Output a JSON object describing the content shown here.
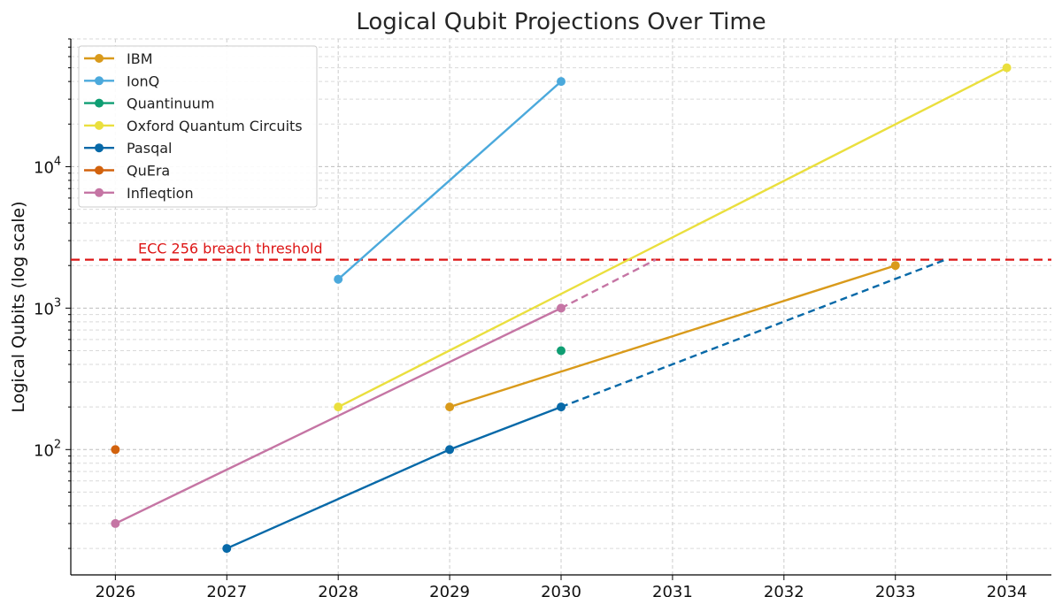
{
  "chart_data": {
    "type": "line",
    "title": "Logical Qubit Projections Over Time",
    "xlabel": "",
    "ylabel": "Logical Qubits (log scale)",
    "yscale": "log",
    "xlim": [
      2025.6,
      2034.4
    ],
    "ylim": [
      13,
      80000
    ],
    "x_ticks": [
      2026,
      2027,
      2028,
      2029,
      2030,
      2031,
      2032,
      2033,
      2034
    ],
    "y_ticks": [
      {
        "value": 100,
        "base": "10",
        "exp": "2"
      },
      {
        "value": 1000,
        "base": "10",
        "exp": "3"
      },
      {
        "value": 10000,
        "base": "10",
        "exp": "4"
      }
    ],
    "grid": true,
    "legend_position": "top-left",
    "series": [
      {
        "name": "IBM",
        "color": "#D99A1B",
        "points": [
          [
            2029,
            200
          ],
          [
            2033,
            2000
          ]
        ],
        "projection": []
      },
      {
        "name": "IonQ",
        "color": "#4BA9DC",
        "points": [
          [
            2028,
            1600
          ],
          [
            2030,
            40000
          ]
        ],
        "projection": []
      },
      {
        "name": "Quantinuum",
        "color": "#0F9E73",
        "points": [
          [
            2030,
            500
          ]
        ],
        "projection": []
      },
      {
        "name": "Oxford Quantum Circuits",
        "color": "#EADF3E",
        "points": [
          [
            2028,
            200
          ],
          [
            2034,
            50000
          ]
        ],
        "projection": []
      },
      {
        "name": "Pasqal",
        "color": "#0769A8",
        "points": [
          [
            2027,
            20
          ],
          [
            2029,
            100
          ],
          [
            2030,
            200
          ]
        ],
        "projection": [
          [
            2030,
            200
          ],
          [
            2033.45,
            2200
          ]
        ]
      },
      {
        "name": "QuEra",
        "color": "#D2620D",
        "points": [
          [
            2026,
            100
          ]
        ],
        "projection": []
      },
      {
        "name": "Infleqtion",
        "color": "#C575A4",
        "points": [
          [
            2026,
            30
          ],
          [
            2030,
            1000
          ]
        ],
        "projection": [
          [
            2030,
            1000
          ],
          [
            2030.85,
            2200
          ]
        ]
      }
    ],
    "threshold": {
      "label": "ECC 256 breach threshold",
      "value": 2200,
      "color": "#DD1515"
    }
  }
}
